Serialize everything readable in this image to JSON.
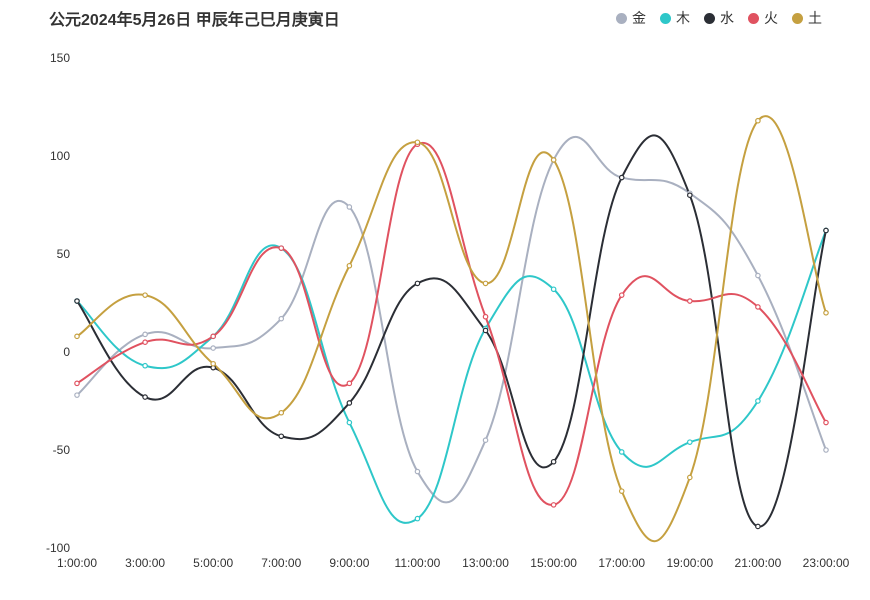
{
  "title": "公元2024年5月26日 甲辰年己巳月庚寅日",
  "chart_data": {
    "type": "line",
    "title": "公元2024年5月26日 甲辰年己巳月庚寅日",
    "xlabel": "",
    "ylabel": "",
    "x": [
      "1:00:00",
      "3:00:00",
      "5:00:00",
      "7:00:00",
      "9:00:00",
      "11:00:00",
      "13:00:00",
      "15:00:00",
      "17:00:00",
      "19:00:00",
      "21:00:00",
      "23:00:00"
    ],
    "ylim": [
      -100,
      150
    ],
    "yticks": [
      -100,
      -50,
      0,
      50,
      100,
      150
    ],
    "legend_position": "top-right",
    "smooth": true,
    "grid": false,
    "series": [
      {
        "name": "金",
        "color": "#a9b0c0",
        "values": [
          -22,
          9,
          2,
          17,
          74,
          -61,
          -45,
          98,
          89,
          81,
          39,
          -50
        ]
      },
      {
        "name": "木",
        "color": "#2ec7c9",
        "values": [
          26,
          -7,
          8,
          53,
          -36,
          -85,
          12,
          32,
          -51,
          -46,
          -25,
          62
        ]
      },
      {
        "name": "水",
        "color": "#2b2e35",
        "values": [
          26,
          -23,
          -8,
          -43,
          -26,
          35,
          11,
          -56,
          89,
          80,
          -89,
          62
        ]
      },
      {
        "name": "火",
        "color": "#e05260",
        "values": [
          -16,
          5,
          8,
          53,
          -16,
          106,
          18,
          -78,
          29,
          26,
          23,
          -36
        ]
      },
      {
        "name": "土",
        "color": "#c5a040",
        "values": [
          8,
          29,
          -6,
          -31,
          44,
          107,
          35,
          98,
          -71,
          -64,
          118,
          20
        ]
      }
    ]
  }
}
